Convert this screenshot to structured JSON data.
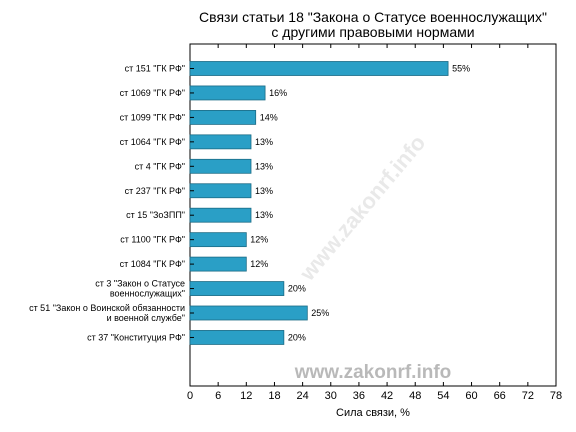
{
  "chart_data": {
    "type": "bar",
    "orientation": "horizontal",
    "title_lines": [
      "Связи статьи 18 \"Закона о Статусе военнослужащих\"",
      "с другими правовыми нормами"
    ],
    "categories": [
      [
        "ст 151 \"ГК РФ\""
      ],
      [
        "ст 1069 \"ГК РФ\""
      ],
      [
        "ст 1099 \"ГК РФ\""
      ],
      [
        "ст 1064 \"ГК РФ\""
      ],
      [
        "ст 4 \"ГК РФ\""
      ],
      [
        "ст 237 \"ГК РФ\""
      ],
      [
        "ст 15 \"ЗоЗПП\""
      ],
      [
        "ст 1100 \"ГК РФ\""
      ],
      [
        "ст 1084 \"ГК РФ\""
      ],
      [
        "ст 3 \"Закон о Статусе",
        "военнослужащих\""
      ],
      [
        "ст 51 \"Закон о Воинской обязанности",
        "и военной службе\""
      ],
      [
        "ст 37 \"Конституция РФ\""
      ]
    ],
    "values": [
      55,
      16,
      14,
      13,
      13,
      13,
      13,
      12,
      12,
      20,
      25,
      20
    ],
    "value_labels": [
      "55%",
      "16%",
      "14%",
      "13%",
      "13%",
      "13%",
      "13%",
      "12%",
      "12%",
      "20%",
      "25%",
      "20%"
    ],
    "xlabel": "Сила связи, %",
    "xlim": [
      0,
      78
    ],
    "xticks": [
      "0",
      "6",
      "12",
      "18",
      "24",
      "30",
      "36",
      "42",
      "48",
      "54",
      "60",
      "66",
      "72",
      "78"
    ],
    "grid": false,
    "bar_color": "#2a9fc6",
    "bar_edge_color": "#1b6b85"
  },
  "watermark": {
    "text": "www.zakonrf.info",
    "diagonal_text": "www.zakonrf.info"
  }
}
